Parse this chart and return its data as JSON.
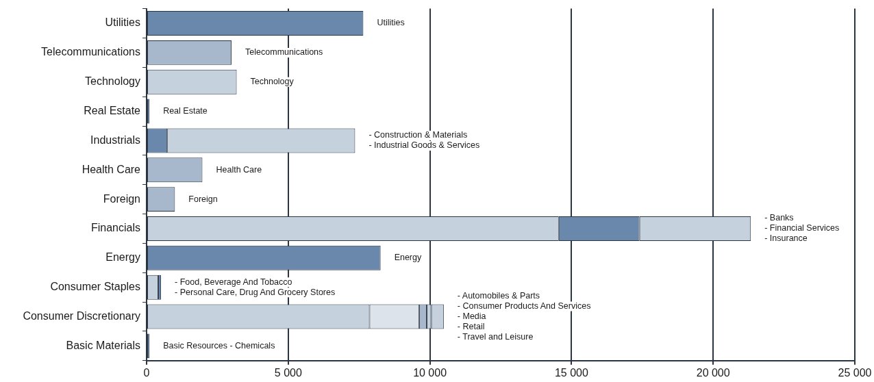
{
  "chart_data": {
    "type": "bar",
    "orientation": "horizontal",
    "stacked": true,
    "categories": [
      "Utilities",
      "Telecommunications",
      "Technology",
      "Real Estate",
      "Industrials",
      "Health Care",
      "Foreign",
      "Financials",
      "Energy",
      "Consumer Staples",
      "Consumer Discretionary",
      "Basic Materials"
    ],
    "series": [
      {
        "colors": [
          "#6a88ab",
          "#a7b8cc",
          "#c5d2de",
          "#6a88ab",
          "#6a88ab",
          "#a7b8cc",
          "#a7b8cc",
          "#c5d2de",
          "#6a88ab",
          "#c5d2de",
          "#c5d2de",
          "#6a88ab"
        ],
        "values": [
          7650,
          3000,
          3180,
          100,
          730,
          1970,
          1000,
          14550,
          8260,
          410,
          7870,
          100
        ]
      },
      {
        "colors": [
          "#c5d2de",
          "#c5d2de",
          "#c5d2de",
          "#c5d2de",
          "#c5d2de",
          "#c5d2de",
          "#c5d2de",
          "#6a88ab",
          "#c5d2de",
          "#6a88ab",
          "#dce3ea",
          "#c5d2de"
        ],
        "values": [
          null,
          null,
          null,
          null,
          6630,
          null,
          null,
          2850,
          null,
          100,
          1750,
          null
        ]
      },
      {
        "colors": [
          "#c5d2de",
          "#c5d2de",
          "#c5d2de",
          "#c5d2de",
          "#c5d2de",
          "#c5d2de",
          "#c5d2de",
          "#c5d2de",
          "#c5d2de",
          "#c5d2de",
          "#a7b8cc",
          "#c5d2de"
        ],
        "values": [
          null,
          null,
          null,
          null,
          null,
          null,
          null,
          3930,
          null,
          null,
          270,
          null
        ]
      },
      {
        "colors": [
          "#c5d2de",
          "#c5d2de",
          "#c5d2de",
          "#c5d2de",
          "#c5d2de",
          "#c5d2de",
          "#c5d2de",
          "#c5d2de",
          "#c5d2de",
          "#c5d2de",
          "#c5d2de",
          "#c5d2de"
        ],
        "values": [
          null,
          null,
          null,
          null,
          null,
          null,
          null,
          null,
          null,
          null,
          160,
          null
        ]
      },
      {
        "colors": [
          "#c5d2de",
          "#c5d2de",
          "#c5d2de",
          "#c5d2de",
          "#c5d2de",
          "#c5d2de",
          "#c5d2de",
          "#c5d2de",
          "#c5d2de",
          "#c5d2de",
          "#c5d2de",
          "#c5d2de"
        ],
        "values": [
          null,
          null,
          null,
          null,
          null,
          null,
          null,
          null,
          null,
          null,
          440,
          null
        ]
      }
    ],
    "xlim": [
      0,
      25000
    ],
    "xticks": [
      0,
      {
        "value": 5000,
        "label": "5 000"
      },
      {
        "value": 10000,
        "label": "10 000"
      },
      {
        "value": 15000,
        "label": "15 000"
      },
      {
        "value": 20000,
        "label": "20 000"
      },
      {
        "value": 25000,
        "label": "25 000"
      }
    ],
    "grid": "x",
    "annotations": [
      "Utilities",
      "Telecommunications",
      "Technology",
      "Real Estate",
      "- Construction & Materials\n- Industrial Goods & Services",
      "Health Care",
      "Foreign",
      "- Banks\n- Financial Services\n- Insurance",
      "Energy",
      "- Food, Beverage And Tobacco\n- Personal Care, Drug And Grocery Stores",
      "- Automobiles & Parts\n- Consumer Products And Services\n- Media\n- Retail\n- Travel and Leisure",
      "Basic Resources - Chemicals"
    ]
  }
}
